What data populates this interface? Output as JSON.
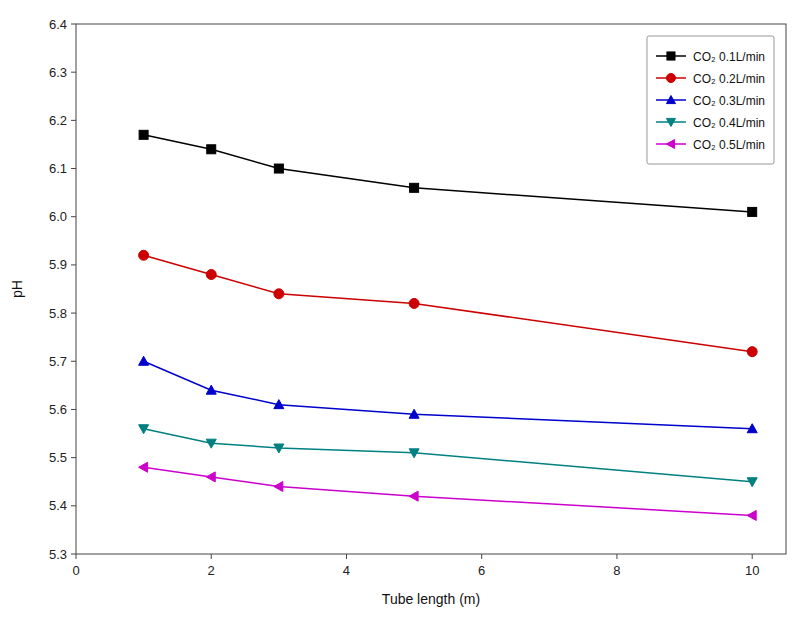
{
  "chart_data": {
    "type": "line",
    "xlabel": "Tube length (m)",
    "ylabel": "pH",
    "x": [
      1,
      2,
      3,
      5,
      10
    ],
    "series": [
      {
        "name": "CO₂ 0.1L/min",
        "color": "black",
        "marker": "square",
        "values": [
          6.17,
          6.14,
          6.1,
          6.06,
          6.01
        ]
      },
      {
        "name": "CO₂ 0.2L/min",
        "color": "#cc0000",
        "marker": "circle",
        "values": [
          5.92,
          5.88,
          5.84,
          5.82,
          5.72
        ]
      },
      {
        "name": "CO₂ 0.3L/min",
        "color": "#0000cc",
        "marker": "triangle-up",
        "values": [
          5.7,
          5.64,
          5.61,
          5.59,
          5.56
        ]
      },
      {
        "name": "CO₂ 0.4L/min",
        "color": "#008080",
        "marker": "triangle-down",
        "values": [
          5.56,
          5.53,
          5.52,
          5.51,
          5.45
        ]
      },
      {
        "name": "CO₂ 0.5L/min",
        "color": "#cc00cc",
        "marker": "triangle-left",
        "values": [
          5.48,
          5.46,
          5.44,
          5.42,
          5.38
        ]
      }
    ],
    "xlim": [
      0,
      10.5
    ],
    "ylim": [
      5.3,
      6.4
    ],
    "xticks": [
      0,
      2,
      4,
      6,
      8,
      10
    ],
    "yticks": [
      5.3,
      5.4,
      5.5,
      5.6,
      5.7,
      5.8,
      5.9,
      {
        "value": 6.0,
        "label": "6.0"
      },
      6.1,
      6.2,
      6.3,
      6.4
    ],
    "legend": "upper right",
    "grid": false
  }
}
